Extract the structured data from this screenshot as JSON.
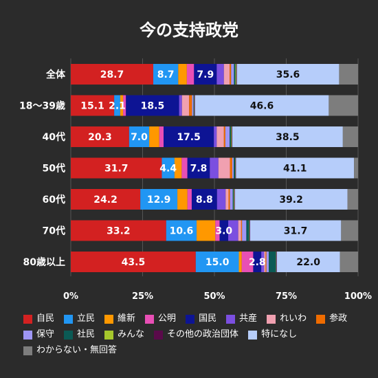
{
  "chart_data": {
    "type": "bar",
    "orientation": "horizontal",
    "stacked": true,
    "title": "今の支持政党",
    "categories": [
      "全体",
      "18～39歳",
      "40代",
      "50代",
      "60代",
      "70代",
      "80歳以上"
    ],
    "series": [
      {
        "name": "自民",
        "color": "#d32121",
        "values": [
          28.7,
          15.1,
          20.3,
          31.7,
          24.2,
          33.2,
          43.5
        ]
      },
      {
        "name": "立民",
        "color": "#2196f3",
        "values": [
          8.7,
          2.1,
          7.0,
          4.4,
          12.9,
          10.6,
          15.0
        ]
      },
      {
        "name": "維新",
        "color": "#ff9800",
        "values": [
          3.0,
          1.0,
          3.5,
          2.5,
          3.5,
          6.5,
          1.0
        ]
      },
      {
        "name": "公明",
        "color": "#e84fb5",
        "values": [
          2.5,
          1.0,
          1.5,
          2.0,
          1.5,
          1.5,
          4.0
        ]
      },
      {
        "name": "国民",
        "color": "#0d1494",
        "values": [
          7.9,
          18.5,
          17.5,
          7.8,
          8.8,
          3.0,
          2.8
        ]
      },
      {
        "name": "共産",
        "color": "#7b4fe0",
        "values": [
          2.5,
          1.0,
          1.0,
          3.0,
          3.0,
          3.5,
          1.0
        ]
      },
      {
        "name": "れいわ",
        "color": "#f0a0b0",
        "values": [
          2.0,
          2.5,
          2.5,
          4.0,
          1.0,
          1.0,
          0.5
        ]
      },
      {
        "name": "参政",
        "color": "#ef6c00",
        "values": [
          0.5,
          1.0,
          0.5,
          0.8,
          0.5,
          0.3,
          0.3
        ]
      },
      {
        "name": "保守",
        "color": "#9e96f5",
        "values": [
          1.0,
          0.5,
          1.5,
          0.5,
          1.0,
          1.5,
          0.8
        ]
      },
      {
        "name": "社民",
        "color": "#0b5a55",
        "values": [
          0.5,
          0.2,
          0.5,
          0.5,
          0.3,
          1.0,
          2.5
        ]
      },
      {
        "name": "みんな",
        "color": "#a6c72c",
        "values": [
          0.3,
          0.1,
          0.2,
          0.1,
          0.2,
          0.1,
          0.1
        ]
      },
      {
        "name": "その他の政治団体",
        "color": "#5a0a4a",
        "values": [
          0.2,
          0.2,
          0.2,
          0.2,
          0.2,
          0.2,
          0.2
        ]
      },
      {
        "name": "特になし",
        "color": "#b6cdfa",
        "values": [
          35.6,
          46.6,
          38.5,
          41.1,
          39.2,
          31.7,
          22.0
        ]
      },
      {
        "name": "わからない・無回答",
        "color": "#7d7d7d",
        "values": [
          6.6,
          10.2,
          5.3,
          1.4,
          3.7,
          6.9,
          6.3
        ]
      }
    ],
    "data_labels": {
      "全体": {
        "自民": "28.7",
        "立民": "8.7",
        "国民": "7.9",
        "特になし": "35.6"
      },
      "18～39歳": {
        "自民": "15.1",
        "立民": "2.1",
        "国民": "18.5",
        "特になし": "46.6"
      },
      "40代": {
        "自民": "20.3",
        "立民": "7.0",
        "国民": "17.5",
        "特になし": "38.5"
      },
      "50代": {
        "自民": "31.7",
        "立民": "4.4",
        "国民": "7.8",
        "特になし": "41.1"
      },
      "60代": {
        "自民": "24.2",
        "立民": "12.9",
        "国民": "8.8",
        "特になし": "39.2"
      },
      "70代": {
        "自民": "33.2",
        "立民": "10.6",
        "国民": "3.0",
        "特になし": "31.7"
      },
      "80歳以上": {
        "自民": "43.5",
        "立民": "15.0",
        "国民": "2.8",
        "特になし": "22.0"
      }
    },
    "label_text_colors": {
      "自民": "#ffffff",
      "立民": "#ffffff",
      "国民": "#ffffff",
      "特になし": "#111111"
    },
    "xticks": [
      "0%",
      "25%",
      "50%",
      "75%",
      "100%"
    ],
    "xlim": [
      0,
      100
    ],
    "grid": true,
    "legend_position": "bottom"
  }
}
